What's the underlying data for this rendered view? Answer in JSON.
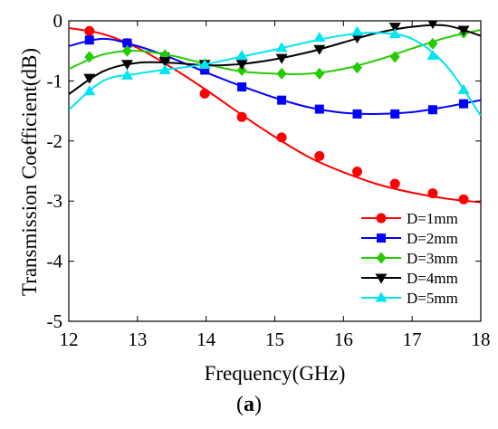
{
  "chart_data": {
    "type": "line",
    "xlabel": "Frequency(GHz)",
    "ylabel": "Transmission Coefficient(dB)",
    "xlim": [
      12,
      18
    ],
    "ylim": [
      -5,
      0
    ],
    "xticks": [
      "12",
      "13",
      "14",
      "15",
      "16",
      "17",
      "18"
    ],
    "yticks": [
      "0",
      "-1",
      "-2",
      "-3",
      "-4",
      "-5"
    ],
    "grid": false,
    "legend_position": "bottom-right",
    "series": [
      {
        "name": "D=1mm",
        "color": "#ff0000",
        "marker": "circle",
        "curve_x": [
          12.0,
          12.5,
          13.0,
          13.5,
          14.0,
          14.5,
          15.0,
          15.5,
          16.0,
          16.5,
          17.0,
          17.5,
          18.0
        ],
        "curve_y": [
          -0.12,
          -0.22,
          -0.45,
          -0.78,
          -1.15,
          -1.55,
          -1.93,
          -2.27,
          -2.52,
          -2.72,
          -2.86,
          -2.96,
          -3.02
        ],
        "marker_x": [
          12.3,
          12.85,
          13.4,
          13.98,
          14.52,
          15.1,
          15.65,
          16.2,
          16.75,
          17.3,
          17.75
        ],
        "marker_y": [
          -0.17,
          -0.37,
          -0.63,
          -1.21,
          -1.6,
          -1.94,
          -2.25,
          -2.51,
          -2.71,
          -2.87,
          -2.97
        ]
      },
      {
        "name": "D=2mm",
        "color": "#0000ff",
        "marker": "square",
        "curve_x": [
          12.0,
          12.5,
          13.0,
          13.5,
          14.0,
          14.5,
          15.0,
          15.5,
          16.0,
          16.5,
          17.0,
          17.5,
          18.0
        ],
        "curve_y": [
          -0.42,
          -0.3,
          -0.42,
          -0.62,
          -0.86,
          -1.08,
          -1.28,
          -1.44,
          -1.53,
          -1.55,
          -1.52,
          -1.43,
          -1.32
        ],
        "marker_x": [
          12.3,
          12.85,
          13.4,
          13.98,
          14.52,
          15.1,
          15.65,
          16.2,
          16.75,
          17.3,
          17.75
        ],
        "marker_y": [
          -0.32,
          -0.37,
          -0.6,
          -0.82,
          -1.1,
          -1.32,
          -1.47,
          -1.55,
          -1.55,
          -1.48,
          -1.38
        ]
      },
      {
        "name": "D=3mm",
        "color": "#22cc00",
        "marker": "diamond",
        "curve_x": [
          12.0,
          12.5,
          13.0,
          13.5,
          14.0,
          14.5,
          15.0,
          15.5,
          16.0,
          16.5,
          17.0,
          17.5,
          18.0
        ],
        "curve_y": [
          -0.8,
          -0.56,
          -0.5,
          -0.58,
          -0.72,
          -0.84,
          -0.88,
          -0.88,
          -0.8,
          -0.65,
          -0.46,
          -0.28,
          -0.15
        ],
        "marker_x": [
          12.3,
          12.85,
          13.4,
          13.98,
          14.52,
          15.1,
          15.65,
          16.2,
          16.75,
          17.3,
          17.75
        ],
        "marker_y": [
          -0.6,
          -0.5,
          -0.57,
          -0.72,
          -0.82,
          -0.88,
          -0.88,
          -0.78,
          -0.6,
          -0.38,
          -0.2
        ]
      },
      {
        "name": "D=4mm",
        "color": "#000000",
        "marker": "triangle-down",
        "curve_x": [
          12.0,
          12.5,
          13.0,
          13.5,
          14.0,
          14.5,
          15.0,
          15.5,
          16.0,
          16.5,
          17.0,
          17.5,
          18.0
        ],
        "curve_y": [
          -1.22,
          -0.84,
          -0.7,
          -0.7,
          -0.74,
          -0.72,
          -0.64,
          -0.52,
          -0.36,
          -0.2,
          -0.1,
          -0.08,
          -0.25
        ],
        "marker_x": [
          12.3,
          12.85,
          13.4,
          13.98,
          14.52,
          15.1,
          15.65,
          16.2,
          16.75,
          17.3,
          17.75
        ],
        "marker_y": [
          -0.95,
          -0.72,
          -0.67,
          -0.72,
          -0.72,
          -0.62,
          -0.47,
          -0.28,
          -0.1,
          -0.04,
          -0.15
        ]
      },
      {
        "name": "D=5mm",
        "color": "#00e5ee",
        "marker": "triangle-up",
        "curve_x": [
          12.0,
          12.5,
          13.0,
          13.5,
          14.0,
          14.5,
          15.0,
          15.5,
          16.0,
          16.5,
          17.0,
          17.5,
          18.0
        ],
        "curve_y": [
          -1.48,
          -1.0,
          -0.88,
          -0.8,
          -0.72,
          -0.6,
          -0.48,
          -0.35,
          -0.24,
          -0.2,
          -0.3,
          -0.75,
          -1.58
        ],
        "marker_x": [
          12.3,
          12.85,
          13.4,
          13.98,
          14.52,
          15.1,
          15.65,
          16.2,
          16.75,
          17.3,
          17.75
        ],
        "marker_y": [
          -1.17,
          -0.91,
          -0.82,
          -0.73,
          -0.58,
          -0.45,
          -0.28,
          -0.18,
          -0.22,
          -0.58,
          -1.15
        ]
      }
    ]
  },
  "caption": {
    "open": "(",
    "label": "a",
    "close": ")"
  }
}
